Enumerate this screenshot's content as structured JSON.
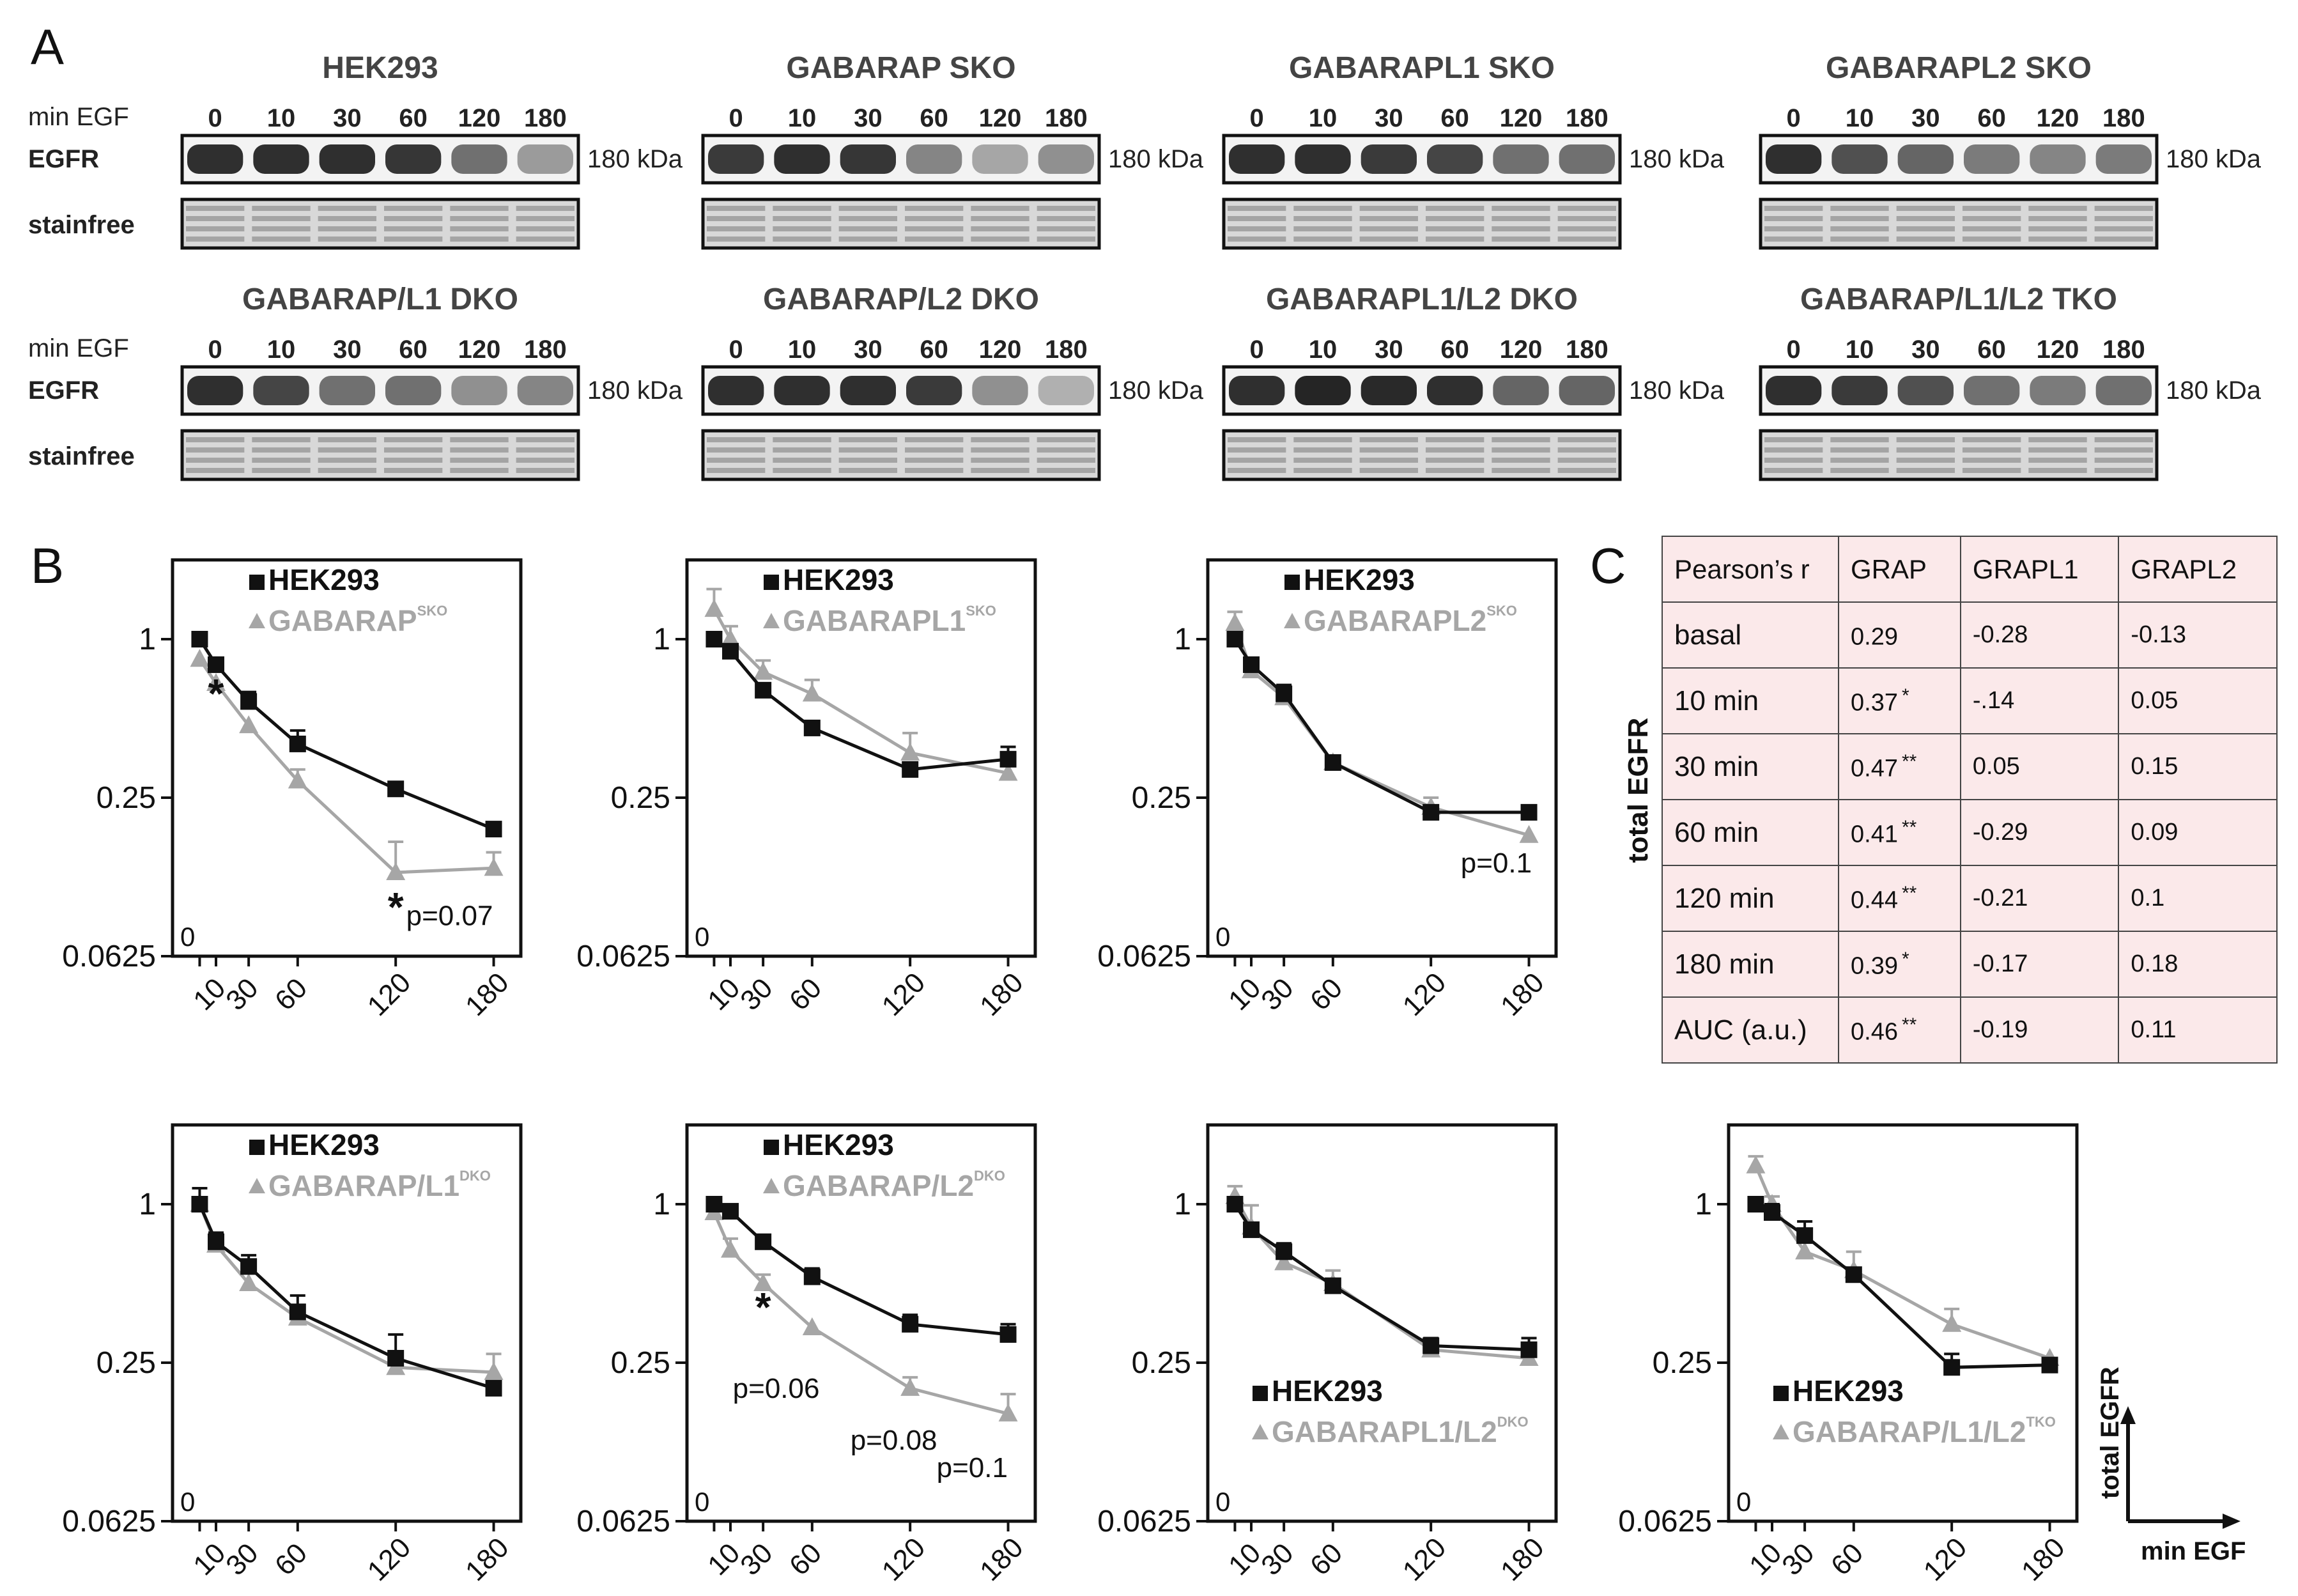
{
  "panel_labels": [
    "A",
    "B",
    "C"
  ],
  "blots": {
    "row_label_min": "min EGF",
    "row_label_egfr": "EGFR",
    "row_label_stain": "stainfree",
    "kda": "180 kDa",
    "timepoints": [
      "0",
      "10",
      "30",
      "60",
      "120",
      "180"
    ],
    "panels": [
      {
        "title": "HEK293",
        "egfr_intensity": [
          0.85,
          0.85,
          0.85,
          0.82,
          0.55,
          0.35
        ]
      },
      {
        "title": "GABARAP SKO",
        "egfr_intensity": [
          0.8,
          0.85,
          0.82,
          0.45,
          0.3,
          0.4
        ]
      },
      {
        "title": "GABARAPL1 SKO",
        "egfr_intensity": [
          0.85,
          0.85,
          0.8,
          0.75,
          0.55,
          0.55
        ]
      },
      {
        "title": "GABARAPL2 SKO",
        "egfr_intensity": [
          0.85,
          0.7,
          0.6,
          0.5,
          0.45,
          0.5
        ]
      },
      {
        "title": "GABARAP/L1 DKO",
        "egfr_intensity": [
          0.85,
          0.75,
          0.55,
          0.55,
          0.4,
          0.45
        ]
      },
      {
        "title": "GABARAP/L2 DKO",
        "egfr_intensity": [
          0.85,
          0.85,
          0.85,
          0.8,
          0.4,
          0.25
        ]
      },
      {
        "title": "GABARAPL1/L2 DKO",
        "egfr_intensity": [
          0.85,
          0.9,
          0.88,
          0.85,
          0.6,
          0.6
        ]
      },
      {
        "title": "GABARAP/L1/L2 TKO",
        "egfr_intensity": [
          0.85,
          0.8,
          0.7,
          0.55,
          0.5,
          0.55
        ]
      }
    ]
  },
  "chart_data": [
    {
      "type": "line",
      "x": [
        0,
        10,
        30,
        60,
        120,
        180
      ],
      "xtick_labels": [
        "10",
        "30",
        "60",
        "120",
        "180"
      ],
      "ytick_labels": [
        "1",
        "0.25",
        "0.0625"
      ],
      "yscale": "log2",
      "ylim": [
        0.0625,
        2
      ],
      "zero_label": "0",
      "series": [
        {
          "name": "HEK293",
          "superscript": "",
          "values": [
            1.0,
            0.8,
            0.58,
            0.4,
            0.27,
            0.19
          ],
          "errors": [
            0.0,
            0.04,
            0.05,
            0.05,
            0.0,
            0.0
          ]
        },
        {
          "name": "GABARAP",
          "superscript": "SKO",
          "values": [
            0.84,
            0.68,
            0.47,
            0.29,
            0.13,
            0.135
          ],
          "errors": [
            0.0,
            0.0,
            0.0,
            0.03,
            0.04,
            0.02
          ]
        }
      ],
      "annotations": [
        {
          "text": "*",
          "x": 10,
          "y": 0.55
        },
        {
          "text": "*",
          "x": 120,
          "y": 0.085
        },
        {
          "text": "p=0.07",
          "x": 153,
          "y": 0.082
        }
      ]
    },
    {
      "type": "line",
      "x": [
        0,
        10,
        30,
        60,
        120,
        180
      ],
      "xtick_labels": [
        "10",
        "30",
        "60",
        "120",
        "180"
      ],
      "ytick_labels": [
        "1",
        "0.25",
        "0.0625"
      ],
      "yscale": "log2",
      "ylim": [
        0.0625,
        2
      ],
      "zero_label": "0",
      "series": [
        {
          "name": "HEK293",
          "superscript": "",
          "values": [
            1.0,
            0.9,
            0.64,
            0.46,
            0.32,
            0.35
          ],
          "errors": [
            0.0,
            0.0,
            0.0,
            0.0,
            0.0,
            0.04
          ]
        },
        {
          "name": "GABARAPL1",
          "superscript": "SKO",
          "values": [
            1.3,
            1.0,
            0.75,
            0.62,
            0.37,
            0.31
          ],
          "errors": [
            0.25,
            0.12,
            0.08,
            0.08,
            0.07,
            0.0
          ]
        }
      ],
      "annotations": []
    },
    {
      "type": "line",
      "x": [
        0,
        10,
        30,
        60,
        120,
        180
      ],
      "xtick_labels": [
        "10",
        "30",
        "60",
        "120",
        "180"
      ],
      "ytick_labels": [
        "1",
        "0.25",
        "0.0625"
      ],
      "yscale": "log2",
      "ylim": [
        0.0625,
        2
      ],
      "zero_label": "0",
      "series": [
        {
          "name": "HEK293",
          "superscript": "",
          "values": [
            1.0,
            0.8,
            0.62,
            0.34,
            0.22,
            0.22
          ],
          "errors": [
            0.0,
            0.0,
            0.05,
            0.0,
            0.0,
            0.0
          ]
        },
        {
          "name": "GABARAPL2",
          "superscript": "SKO",
          "values": [
            1.15,
            0.76,
            0.6,
            0.34,
            0.23,
            0.18
          ],
          "errors": [
            0.12,
            0.0,
            0.0,
            0.0,
            0.02,
            0.0
          ]
        }
      ],
      "annotations": [
        {
          "text": "p=0.1",
          "x": 160,
          "y": 0.13
        }
      ]
    },
    {
      "type": "line",
      "x": [
        0,
        10,
        30,
        60,
        120,
        180
      ],
      "xtick_labels": [
        "10",
        "30",
        "60",
        "120",
        "180"
      ],
      "ytick_labels": [
        "1",
        "0.25",
        "0.0625"
      ],
      "yscale": "log2",
      "ylim": [
        0.0625,
        2
      ],
      "zero_label": "0",
      "series": [
        {
          "name": "HEK293",
          "superscript": "",
          "values": [
            1.0,
            0.72,
            0.58,
            0.39,
            0.26,
            0.2
          ],
          "errors": [
            0.15,
            0.06,
            0.06,
            0.06,
            0.06,
            0.0
          ]
        },
        {
          "name": "GABARAP/L1",
          "superscript": "DKO",
          "values": [
            1.0,
            0.7,
            0.5,
            0.37,
            0.24,
            0.23
          ],
          "errors": [
            0.0,
            0.0,
            0.0,
            0.0,
            0.0,
            0.04
          ]
        }
      ],
      "annotations": []
    },
    {
      "type": "line",
      "x": [
        0,
        10,
        30,
        60,
        120,
        180
      ],
      "xtick_labels": [
        "10",
        "30",
        "60",
        "120",
        "180"
      ],
      "ytick_labels": [
        "1",
        "0.25",
        "0.0625"
      ],
      "yscale": "log2",
      "ylim": [
        0.0625,
        2
      ],
      "zero_label": "0",
      "series": [
        {
          "name": "HEK293",
          "superscript": "",
          "values": [
            1.0,
            0.94,
            0.72,
            0.53,
            0.35,
            0.32
          ],
          "errors": [
            0.0,
            0.0,
            0.0,
            0.04,
            0.03,
            0.03
          ]
        },
        {
          "name": "GABARAP/L2",
          "superscript": "DKO",
          "values": [
            0.93,
            0.67,
            0.5,
            0.34,
            0.2,
            0.16
          ],
          "errors": [
            0.0,
            0.07,
            0.04,
            0.0,
            0.02,
            0.03
          ]
        }
      ],
      "annotations": [
        {
          "text": "*",
          "x": 30,
          "y": 0.36
        },
        {
          "text": "p=0.06",
          "x": 38,
          "y": 0.184
        },
        {
          "text": "p=0.08",
          "x": 110,
          "y": 0.117
        },
        {
          "text": "p=0.1",
          "x": 158,
          "y": 0.092
        }
      ]
    },
    {
      "type": "line",
      "x": [
        0,
        10,
        30,
        60,
        120,
        180
      ],
      "xtick_labels": [
        "10",
        "30",
        "60",
        "120",
        "180"
      ],
      "ytick_labels": [
        "1",
        "0.25",
        "0.0625"
      ],
      "yscale": "log2",
      "ylim": [
        0.0625,
        2
      ],
      "zero_label": "0",
      "series": [
        {
          "name": "HEK293",
          "superscript": "",
          "values": [
            1.0,
            0.8,
            0.66,
            0.49,
            0.29,
            0.28
          ],
          "errors": [
            0.0,
            0.0,
            0.05,
            0.0,
            0.02,
            0.03
          ]
        },
        {
          "name": "GABARAPL1/L2",
          "superscript": "DKO",
          "values": [
            1.07,
            0.82,
            0.6,
            0.5,
            0.28,
            0.26
          ],
          "errors": [
            0.1,
            0.17,
            0.0,
            0.06,
            0.0,
            0.0
          ]
        }
      ],
      "annotations": []
    },
    {
      "type": "line",
      "x": [
        0,
        10,
        30,
        60,
        120,
        180
      ],
      "xtick_labels": [
        "10",
        "30",
        "60",
        "120",
        "180"
      ],
      "ytick_labels": [
        "1",
        "0.25",
        "0.0625"
      ],
      "yscale": "log2",
      "ylim": [
        0.0625,
        2
      ],
      "zero_label": "0",
      "series": [
        {
          "name": "HEK293",
          "superscript": "",
          "values": [
            1.0,
            0.93,
            0.76,
            0.54,
            0.24,
            0.245
          ],
          "errors": [
            0.0,
            0.07,
            0.1,
            0.0,
            0.03,
            0.0
          ]
        },
        {
          "name": "GABARAP/L1/L2",
          "superscript": "TKO",
          "values": [
            1.4,
            1.0,
            0.66,
            0.56,
            0.35,
            0.26
          ],
          "errors": [
            0.12,
            0.07,
            0.0,
            0.1,
            0.05,
            0.0
          ]
        }
      ],
      "annotations": []
    }
  ],
  "axis_legend": {
    "y": "total EGFR",
    "x": "min EGF"
  },
  "table": {
    "side_label": "total EGFR",
    "header": [
      "Pearson’s r",
      "GRAP",
      "GRAPL1",
      "GRAPL2"
    ],
    "rows": [
      {
        "label": "basal",
        "grap": "0.29",
        "grap_sig": "",
        "grapl1": "-0.28",
        "grapl2": "-0.13"
      },
      {
        "label": "10 min",
        "grap": "0.37",
        "grap_sig": "*",
        "grapl1": "-.14",
        "grapl2": "0.05"
      },
      {
        "label": "30 min",
        "grap": "0.47",
        "grap_sig": "**",
        "grapl1": "0.05",
        "grapl2": "0.15"
      },
      {
        "label": "60 min",
        "grap": "0.41",
        "grap_sig": "**",
        "grapl1": "-0.29",
        "grapl2": "0.09"
      },
      {
        "label": "120 min",
        "grap": "0.44",
        "grap_sig": "**",
        "grapl1": "-0.21",
        "grapl2": "0.1"
      },
      {
        "label": "180 min",
        "grap": "0.39",
        "grap_sig": "*",
        "grapl1": "-0.17",
        "grapl2": "0.18"
      },
      {
        "label": "AUC (a.u.)",
        "grap": "0.46",
        "grap_sig": "**",
        "grapl1": "-0.19",
        "grapl2": "0.11"
      }
    ]
  },
  "colors": {
    "control": "#111111",
    "knockout": "#a6a6a6",
    "table_bg": "#fbe9ea"
  }
}
